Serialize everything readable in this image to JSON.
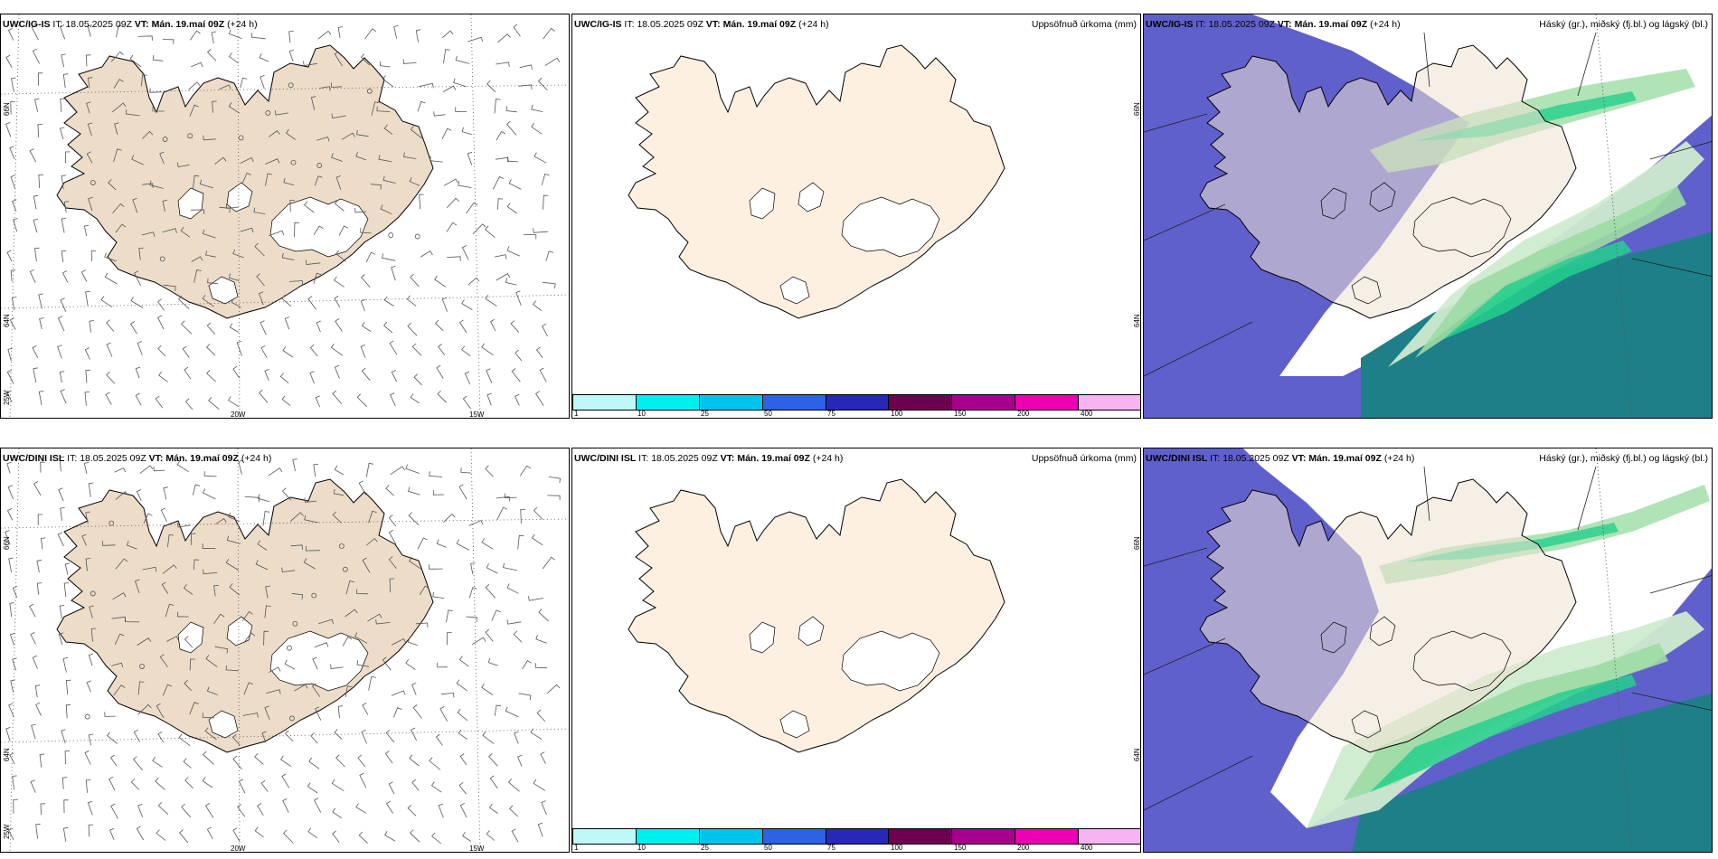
{
  "panels": {
    "p1": {
      "model": "UWC/IG-IS",
      "it_label": "IT:",
      "it_value": "18.05.2025 09Z",
      "vt_label": "VT:",
      "vt_value": "Mán. 19.maí 09Z",
      "lead": "(+24 h)",
      "right_label": ""
    },
    "p2": {
      "model": "UWC/IG-IS",
      "it_label": "IT:",
      "it_value": "18.05.2025 09Z",
      "vt_label": "VT:",
      "vt_value": "Mán. 19.maí 09Z",
      "lead": "(+24 h)",
      "right_label": "Uppsöfnuð úrkoma (mm)"
    },
    "p3": {
      "model": "UWC/IG-IS",
      "it_label": "IT:",
      "it_value": "18.05.2025 09Z",
      "vt_label": "VT:",
      "vt_value": "Mán. 19.maí 09Z",
      "lead": "(+24 h)",
      "right_label": "Háský (gr.), miðský (fj.bl.) og lágský (bl.)"
    },
    "p4": {
      "model": "UWC/DINI ISL",
      "it_label": "IT:",
      "it_value": "18.05.2025 09Z",
      "vt_label": "VT:",
      "vt_value": "Mán. 19.maí 09Z",
      "lead": "(+24 h)",
      "right_label": ""
    },
    "p5": {
      "model": "UWC/DINI ISL",
      "it_label": "IT:",
      "it_value": "18.05.2025 09Z",
      "vt_label": "VT:",
      "vt_value": "Mán. 19.maí 09Z",
      "lead": "(+24 h)",
      "right_label": "Uppsöfnuð úrkoma (mm)"
    },
    "p6": {
      "model": "UWC/DINI ISL",
      "it_label": "IT:",
      "it_value": "18.05.2025 09Z",
      "vt_label": "VT:",
      "vt_value": "Mán. 19.maí 09Z",
      "lead": "(+24 h)",
      "right_label": "Háský (gr.), miðský (fj.bl.) og lágský (bl.)"
    }
  },
  "ticks": {
    "lat66": "66N",
    "lat64": "64N",
    "lon20": "20W",
    "lon15": "15W",
    "lon25": "25W"
  },
  "colorbar": {
    "colors": [
      "#bff8f8",
      "#00f0f0",
      "#00c4ee",
      "#2c62e6",
      "#2828b8",
      "#6e0050",
      "#a8008c",
      "#ee00b4",
      "#f6b4f2"
    ],
    "labels": [
      "1",
      "10",
      "25",
      "50",
      "75",
      "100",
      "150",
      "200",
      "400"
    ]
  },
  "colors": {
    "land_wind": "#eddcc8",
    "land_precip": "#fdf0e1",
    "land_cloud": "#efe1d2",
    "low_cloud": "#6060cc",
    "mid_cloud": "#1e7f88",
    "high_cloud_light": "#cdebcf",
    "high_cloud": "#9cdca4",
    "high_cloud_dark": "#24d08c"
  }
}
